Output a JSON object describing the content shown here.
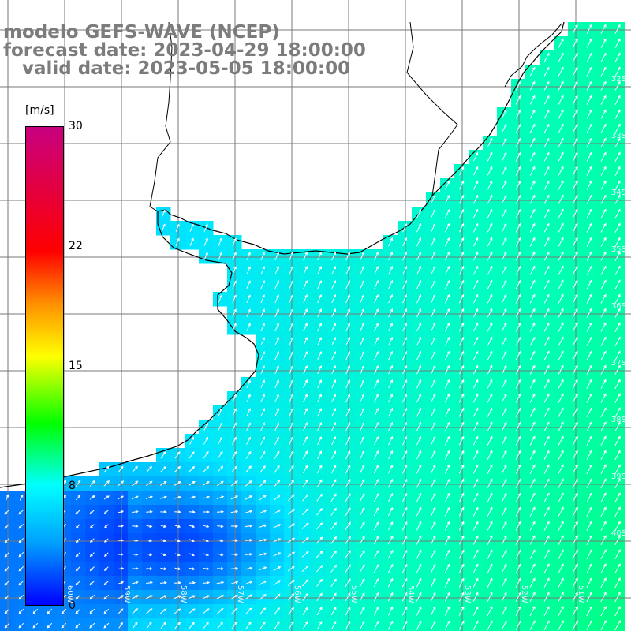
{
  "title": {
    "line1": "modelo GEFS-WAVE (NCEP)",
    "line2": "forecast date: 2023-04-29 18:00:00",
    "line3": "   valid date: 2023-05-05 18:00:00"
  },
  "colorbar": {
    "units": "[m/s]",
    "ticks": [
      "30",
      "22",
      "15",
      "8",
      "0"
    ],
    "range": [
      0,
      30
    ],
    "colors": [
      "#0000ff",
      "#00a0ff",
      "#00ffff",
      "#00ff00",
      "#ffff00",
      "#ff9000",
      "#ff0000",
      "#c80080"
    ]
  },
  "lat_labels": [
    "32S",
    "33S",
    "34S",
    "35S",
    "36S",
    "37S",
    "38S",
    "39S",
    "40S"
  ],
  "lon_labels": [
    "60W",
    "59W",
    "58W",
    "57W",
    "56W",
    "55W",
    "54W",
    "53W",
    "52W",
    "51W"
  ],
  "map": {
    "land_color": "#ffffff",
    "grid_color": "#7a7a7a",
    "coast_color": "#000000",
    "arrow_color": "#ffffff"
  }
}
